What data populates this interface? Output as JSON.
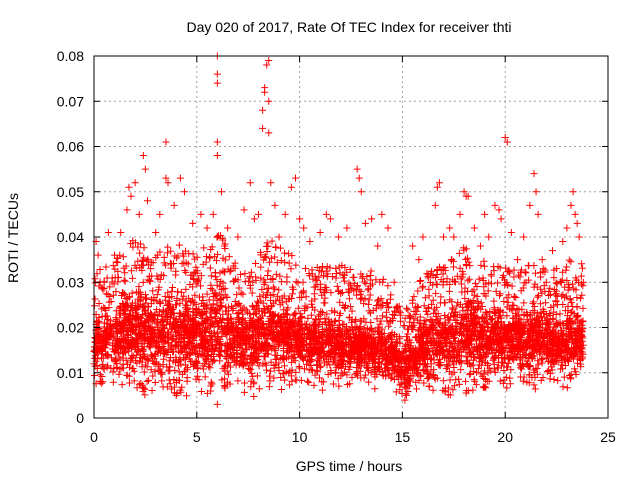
{
  "chart_data": {
    "type": "scatter",
    "title": "Day 020 of 2017, Rate Of TEC Index for receiver thti",
    "xlabel": "GPS time / hours",
    "ylabel": "ROTI / TECUs",
    "xlim": [
      0,
      25
    ],
    "ylim": [
      0,
      0.08
    ],
    "x_ticks": [
      0,
      5,
      10,
      15,
      20,
      25
    ],
    "x_tick_labels": [
      "0",
      "5",
      "10",
      "15",
      "20",
      "25"
    ],
    "y_ticks": [
      0,
      0.01,
      0.02,
      0.03,
      0.04,
      0.05,
      0.06,
      0.07,
      0.08
    ],
    "y_tick_labels": [
      "0",
      "0.01",
      "0.02",
      "0.03",
      "0.04",
      "0.05",
      "0.06",
      "0.07",
      "0.08"
    ],
    "grid": true,
    "marker": "+",
    "series_color": "#ff0000",
    "series": [
      {
        "name": "ROTI",
        "points": [
          [
            0.0,
            0.012
          ],
          [
            0.1,
            0.039
          ],
          [
            0.2,
            0.036
          ],
          [
            0.3,
            0.008
          ],
          [
            0.5,
            0.03
          ],
          [
            0.7,
            0.041
          ],
          [
            1.0,
            0.036
          ],
          [
            1.3,
            0.041
          ],
          [
            1.6,
            0.046
          ],
          [
            1.7,
            0.051
          ],
          [
            1.8,
            0.049
          ],
          [
            2.0,
            0.052
          ],
          [
            2.2,
            0.045
          ],
          [
            2.4,
            0.058
          ],
          [
            2.5,
            0.055
          ],
          [
            2.6,
            0.048
          ],
          [
            3.0,
            0.041
          ],
          [
            3.2,
            0.045
          ],
          [
            3.5,
            0.061
          ],
          [
            3.5,
            0.053
          ],
          [
            3.6,
            0.052
          ],
          [
            3.9,
            0.047
          ],
          [
            4.0,
            0.005
          ],
          [
            4.2,
            0.053
          ],
          [
            4.4,
            0.05
          ],
          [
            4.8,
            0.043
          ],
          [
            5.2,
            0.045
          ],
          [
            5.5,
            0.042
          ],
          [
            5.8,
            0.045
          ],
          [
            6.0,
            0.08
          ],
          [
            6.0,
            0.076
          ],
          [
            6.0,
            0.074
          ],
          [
            6.0,
            0.061
          ],
          [
            6.0,
            0.058
          ],
          [
            6.0,
            0.003
          ],
          [
            6.2,
            0.05
          ],
          [
            6.5,
            0.042
          ],
          [
            7.0,
            0.04
          ],
          [
            7.3,
            0.046
          ],
          [
            7.6,
            0.052
          ],
          [
            7.8,
            0.044
          ],
          [
            8.0,
            0.045
          ],
          [
            8.2,
            0.068
          ],
          [
            8.2,
            0.064
          ],
          [
            8.3,
            0.073
          ],
          [
            8.3,
            0.072
          ],
          [
            8.4,
            0.078
          ],
          [
            8.5,
            0.079
          ],
          [
            8.5,
            0.07
          ],
          [
            8.5,
            0.063
          ],
          [
            8.6,
            0.052
          ],
          [
            8.8,
            0.047
          ],
          [
            9.0,
            0.04
          ],
          [
            9.3,
            0.045
          ],
          [
            9.6,
            0.051
          ],
          [
            9.8,
            0.053
          ],
          [
            10.0,
            0.044
          ],
          [
            10.2,
            0.042
          ],
          [
            10.5,
            0.039
          ],
          [
            11.0,
            0.041
          ],
          [
            11.3,
            0.045
          ],
          [
            11.5,
            0.044
          ],
          [
            11.9,
            0.04
          ],
          [
            12.3,
            0.042
          ],
          [
            12.8,
            0.055
          ],
          [
            12.9,
            0.053
          ],
          [
            13.0,
            0.05
          ],
          [
            13.2,
            0.043
          ],
          [
            13.5,
            0.044
          ],
          [
            13.8,
            0.038
          ],
          [
            14.0,
            0.045
          ],
          [
            14.3,
            0.042
          ],
          [
            14.6,
            0.03
          ],
          [
            14.8,
            0.01
          ],
          [
            15.2,
            0.005
          ],
          [
            15.5,
            0.038
          ],
          [
            15.8,
            0.035
          ],
          [
            16.0,
            0.04
          ],
          [
            16.3,
            0.027
          ],
          [
            16.6,
            0.047
          ],
          [
            16.7,
            0.051
          ],
          [
            16.8,
            0.052
          ],
          [
            17.0,
            0.04
          ],
          [
            17.3,
            0.042
          ],
          [
            17.5,
            0.04
          ],
          [
            17.8,
            0.045
          ],
          [
            18.0,
            0.05
          ],
          [
            18.1,
            0.049
          ],
          [
            18.2,
            0.049
          ],
          [
            18.5,
            0.042
          ],
          [
            18.8,
            0.038
          ],
          [
            19.0,
            0.045
          ],
          [
            19.2,
            0.04
          ],
          [
            19.5,
            0.047
          ],
          [
            19.7,
            0.046
          ],
          [
            19.8,
            0.044
          ],
          [
            20.0,
            0.062
          ],
          [
            20.1,
            0.061
          ],
          [
            20.3,
            0.041
          ],
          [
            20.6,
            0.035
          ],
          [
            20.9,
            0.04
          ],
          [
            21.2,
            0.047
          ],
          [
            21.4,
            0.054
          ],
          [
            21.5,
            0.05
          ],
          [
            21.6,
            0.045
          ],
          [
            21.8,
            0.035
          ],
          [
            22.0,
            0.03
          ],
          [
            22.3,
            0.037
          ],
          [
            22.5,
            0.033
          ],
          [
            22.8,
            0.039
          ],
          [
            23.0,
            0.042
          ],
          [
            23.2,
            0.047
          ],
          [
            23.3,
            0.05
          ],
          [
            23.4,
            0.045
          ],
          [
            23.5,
            0.043
          ],
          [
            23.6,
            0.04
          ],
          [
            23.8,
            0.03
          ]
        ],
        "density_profile": {
          "description": "dense cloud of ROTI values sampled every 0.25 h (low envelope, typical, high envelope)",
          "x": [
            0,
            0.25,
            0.5,
            0.75,
            1,
            1.25,
            1.5,
            1.75,
            2,
            2.25,
            2.5,
            2.75,
            3,
            3.25,
            3.5,
            3.75,
            4,
            4.25,
            4.5,
            4.75,
            5,
            5.25,
            5.5,
            5.75,
            6,
            6.25,
            6.5,
            6.75,
            7,
            7.25,
            7.5,
            7.75,
            8,
            8.25,
            8.5,
            8.75,
            9,
            9.25,
            9.5,
            9.75,
            10,
            10.25,
            10.5,
            10.75,
            11,
            11.25,
            11.5,
            11.75,
            12,
            12.25,
            12.5,
            12.75,
            13,
            13.25,
            13.5,
            13.75,
            14,
            14.25,
            14.5,
            14.75,
            15,
            15.25,
            15.5,
            15.75,
            16,
            16.25,
            16.5,
            16.75,
            17,
            17.25,
            17.5,
            17.75,
            18,
            18.25,
            18.5,
            18.75,
            19,
            19.25,
            19.5,
            19.75,
            20,
            20.25,
            20.5,
            20.75,
            21,
            21.25,
            21.5,
            21.75,
            22,
            22.25,
            22.5,
            22.75,
            23,
            23.25,
            23.5,
            23.75
          ],
          "low": [
            0.008,
            0.008,
            0.009,
            0.008,
            0.008,
            0.008,
            0.008,
            0.007,
            0.007,
            0.007,
            0.006,
            0.006,
            0.006,
            0.006,
            0.006,
            0.006,
            0.005,
            0.006,
            0.006,
            0.007,
            0.007,
            0.007,
            0.007,
            0.006,
            0.006,
            0.007,
            0.007,
            0.007,
            0.007,
            0.007,
            0.006,
            0.006,
            0.006,
            0.006,
            0.007,
            0.007,
            0.008,
            0.008,
            0.008,
            0.008,
            0.008,
            0.008,
            0.008,
            0.008,
            0.008,
            0.008,
            0.008,
            0.008,
            0.008,
            0.008,
            0.008,
            0.008,
            0.008,
            0.008,
            0.008,
            0.007,
            0.007,
            0.007,
            0.007,
            0.006,
            0.005,
            0.005,
            0.006,
            0.006,
            0.007,
            0.007,
            0.007,
            0.007,
            0.007,
            0.006,
            0.006,
            0.006,
            0.006,
            0.006,
            0.006,
            0.007,
            0.007,
            0.008,
            0.008,
            0.008,
            0.008,
            0.008,
            0.008,
            0.008,
            0.008,
            0.007,
            0.007,
            0.007,
            0.007,
            0.008,
            0.008,
            0.008,
            0.008,
            0.008,
            0.009,
            0.01
          ],
          "mid": [
            0.015,
            0.016,
            0.017,
            0.017,
            0.017,
            0.018,
            0.018,
            0.018,
            0.019,
            0.019,
            0.018,
            0.018,
            0.018,
            0.018,
            0.019,
            0.019,
            0.018,
            0.018,
            0.018,
            0.018,
            0.018,
            0.018,
            0.018,
            0.019,
            0.02,
            0.019,
            0.018,
            0.018,
            0.017,
            0.017,
            0.016,
            0.016,
            0.017,
            0.018,
            0.019,
            0.019,
            0.018,
            0.018,
            0.018,
            0.017,
            0.016,
            0.016,
            0.016,
            0.016,
            0.016,
            0.016,
            0.016,
            0.016,
            0.016,
            0.016,
            0.016,
            0.015,
            0.015,
            0.015,
            0.015,
            0.015,
            0.015,
            0.014,
            0.014,
            0.013,
            0.012,
            0.012,
            0.013,
            0.014,
            0.015,
            0.016,
            0.017,
            0.017,
            0.017,
            0.018,
            0.018,
            0.018,
            0.018,
            0.018,
            0.018,
            0.017,
            0.017,
            0.017,
            0.017,
            0.017,
            0.017,
            0.017,
            0.017,
            0.017,
            0.017,
            0.017,
            0.017,
            0.017,
            0.017,
            0.016,
            0.016,
            0.016,
            0.017,
            0.017,
            0.017,
            0.017
          ],
          "high": [
            0.032,
            0.034,
            0.034,
            0.034,
            0.035,
            0.036,
            0.038,
            0.04,
            0.04,
            0.04,
            0.038,
            0.036,
            0.036,
            0.037,
            0.038,
            0.04,
            0.04,
            0.038,
            0.037,
            0.037,
            0.038,
            0.038,
            0.039,
            0.041,
            0.042,
            0.04,
            0.038,
            0.036,
            0.034,
            0.033,
            0.032,
            0.033,
            0.036,
            0.04,
            0.042,
            0.04,
            0.038,
            0.037,
            0.037,
            0.036,
            0.034,
            0.034,
            0.033,
            0.033,
            0.034,
            0.034,
            0.034,
            0.034,
            0.034,
            0.034,
            0.033,
            0.032,
            0.032,
            0.033,
            0.033,
            0.032,
            0.031,
            0.03,
            0.028,
            0.026,
            0.024,
            0.025,
            0.027,
            0.03,
            0.033,
            0.035,
            0.036,
            0.036,
            0.036,
            0.037,
            0.038,
            0.038,
            0.038,
            0.037,
            0.036,
            0.035,
            0.035,
            0.034,
            0.034,
            0.034,
            0.034,
            0.034,
            0.034,
            0.034,
            0.034,
            0.034,
            0.034,
            0.034,
            0.034,
            0.033,
            0.033,
            0.034,
            0.035,
            0.035,
            0.036,
            0.036
          ]
        }
      }
    ]
  }
}
